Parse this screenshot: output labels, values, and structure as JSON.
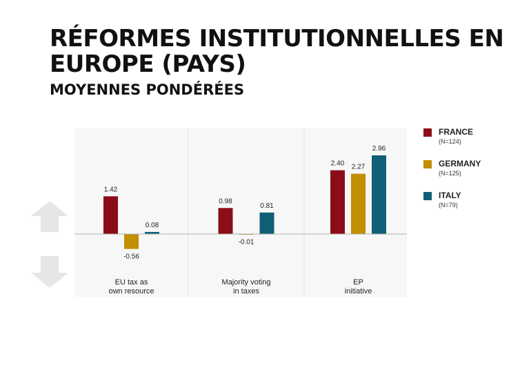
{
  "title": "RÉFORMES INSTITUTIONNELLES EN EUROPE (PAYS)",
  "subtitle": "MOYENNES PONDÉRÉES",
  "legend": [
    {
      "name": "FRANCE",
      "n": "(N=124)",
      "color": "#8b0d19"
    },
    {
      "name": "GERMANY",
      "n": "(N=125)",
      "color": "#c18f00"
    },
    {
      "name": "ITALY",
      "n": "(N=79)",
      "color": "#0f5f78"
    }
  ],
  "chart_data": {
    "type": "bar",
    "categories": [
      [
        "EU tax as",
        "own resource"
      ],
      [
        "Majority voting",
        "in taxes"
      ],
      [
        "EP",
        "initiative"
      ]
    ],
    "series": [
      {
        "name": "FRANCE",
        "values": [
          1.42,
          0.98,
          2.4
        ]
      },
      {
        "name": "GERMANY",
        "values": [
          -0.56,
          -0.01,
          2.27
        ]
      },
      {
        "name": "ITALY",
        "values": [
          0.08,
          0.81,
          2.96
        ]
      }
    ],
    "data_labels": [
      [
        "1.42",
        "0.98",
        "2.40"
      ],
      [
        "-0.56",
        "-0.01",
        "2.27"
      ],
      [
        "0.08",
        "0.81",
        "2.96"
      ]
    ],
    "colors": [
      "#8b0d19",
      "#c18f00",
      "#0f5f78"
    ],
    "ylim": [
      -1.0,
      3.6
    ],
    "grid": false,
    "legend_position": "right",
    "side_icons": [
      "arrow-up-icon",
      "arrow-down-icon"
    ],
    "gray_color": "#e6e6e6"
  }
}
